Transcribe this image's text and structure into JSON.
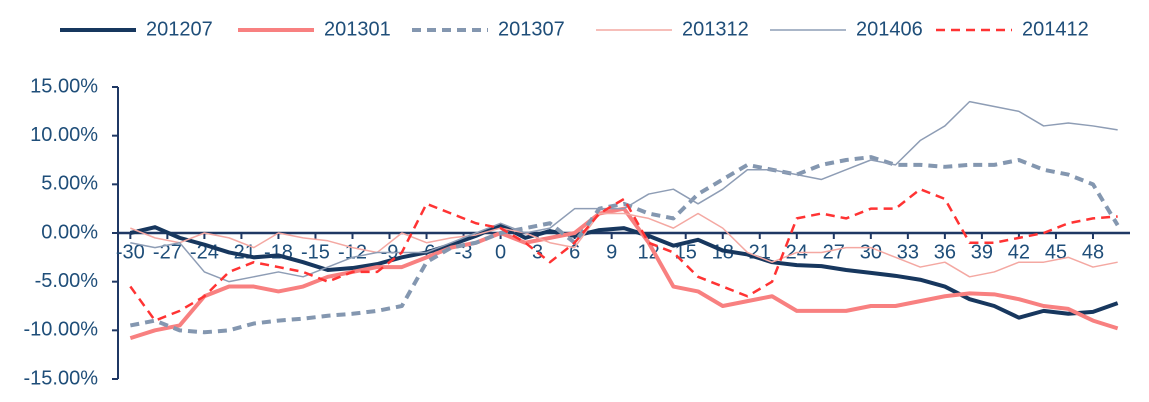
{
  "chart_data": {
    "type": "line",
    "x": [
      -30,
      -28,
      -26,
      -24,
      -22,
      -20,
      -18,
      -16,
      -14,
      -12,
      -10,
      -8,
      -6,
      -4,
      -2,
      0,
      2,
      4,
      6,
      8,
      10,
      12,
      14,
      16,
      18,
      20,
      22,
      24,
      26,
      28,
      30,
      32,
      34,
      36,
      38,
      40,
      42,
      44,
      46,
      48,
      50
    ],
    "series": [
      {
        "name": "201207",
        "color": "#17375e",
        "style": "solid",
        "weight": "thick",
        "values": [
          0,
          0.6,
          -0.5,
          -1.2,
          -2,
          -2.5,
          -2.3,
          -3,
          -3.8,
          -3.6,
          -3.2,
          -2.5,
          -2,
          -1.2,
          -0.3,
          0.8,
          -0.5,
          0.2,
          -0.3,
          0.3,
          0.5,
          -0.3,
          -1.3,
          -0.7,
          -1.8,
          -2.2,
          -3,
          -3.3,
          -3.4,
          -3.8,
          -4.1,
          -4.4,
          -4.8,
          -5.5,
          -6.8,
          -7.5,
          -8.7,
          -8,
          -8.3,
          -8.1,
          -7.2
        ]
      },
      {
        "name": "201301",
        "color": "#f88080",
        "style": "solid",
        "weight": "thick",
        "values": [
          -10.8,
          -10,
          -9.5,
          -6.5,
          -5.5,
          -5.5,
          -6,
          -5.5,
          -4.5,
          -4,
          -3.5,
          -3.5,
          -2.5,
          -1.5,
          -1,
          0,
          -1,
          -0.5,
          0,
          2,
          2.5,
          -1,
          -5.5,
          -6,
          -7.5,
          -7,
          -6.5,
          -8,
          -8,
          -8,
          -7.5,
          -7.5,
          -7,
          -6.5,
          -6.2,
          -6.3,
          -6.8,
          -7.5,
          -7.8,
          -9,
          -9.8
        ]
      },
      {
        "name": "201307",
        "color": "#8497b0",
        "style": "dashed",
        "weight": "thick",
        "values": [
          -9.5,
          -9,
          -10,
          -10.2,
          -10,
          -9.3,
          -9,
          -8.8,
          -8.5,
          -8.3,
          -8,
          -7.5,
          -3,
          -1.5,
          -1,
          0,
          0.5,
          1,
          -1,
          2.5,
          3,
          2,
          1.5,
          4,
          5.5,
          7,
          6.5,
          6,
          7,
          7.5,
          7.8,
          7,
          7,
          6.8,
          7,
          7,
          7.5,
          6.5,
          6,
          5,
          0.8
        ]
      },
      {
        "name": "201312",
        "color": "#f4a8a2",
        "style": "solid",
        "weight": "thin",
        "values": [
          0.5,
          -0.5,
          -1,
          0,
          -0.5,
          -1.5,
          0,
          -0.5,
          -0.8,
          -1.5,
          -2,
          0,
          -1,
          -0.5,
          -0.2,
          0.5,
          0,
          -1,
          -1.5,
          2,
          2,
          1.5,
          0.5,
          2,
          0.5,
          -2,
          -3,
          -2,
          -2,
          -1.5,
          -1.5,
          -2.5,
          -3.5,
          -3,
          -4.5,
          -4,
          -3,
          -3,
          -2.5,
          -3.5,
          -3
        ]
      },
      {
        "name": "201406",
        "color": "#8e9db5",
        "style": "solid",
        "weight": "thin",
        "values": [
          -1,
          -1.5,
          -1,
          -4,
          -5,
          -4.5,
          -4,
          -4.5,
          -3.5,
          -2.5,
          -2,
          -2,
          -2,
          -1,
          0,
          1,
          0,
          0.5,
          2.5,
          2.5,
          2.5,
          4,
          4.5,
          3,
          4.5,
          6.5,
          6.5,
          6,
          5.5,
          6.5,
          7.5,
          7,
          9.5,
          11,
          13.5,
          13,
          12.5,
          11,
          11.3,
          11,
          10.6
        ]
      },
      {
        "name": "201412",
        "color": "#ff3333",
        "style": "dashed",
        "weight": "medium",
        "values": [
          -5.5,
          -9,
          -8,
          -6.5,
          -4,
          -3,
          -3.5,
          -4,
          -5,
          -4,
          -4,
          -2,
          3,
          2,
          1,
          0.5,
          -1,
          -3,
          -1,
          2,
          3.5,
          -1,
          -2,
          -4.5,
          -5.5,
          -6.5,
          -5,
          1.5,
          2,
          1.5,
          2.5,
          2.5,
          4.5,
          3.5,
          -1,
          -1,
          -0.5,
          0,
          1,
          1.5,
          1.7
        ]
      }
    ],
    "xlim": [
      -31,
      51
    ],
    "xticks": [
      -30,
      -27,
      -24,
      -21,
      -18,
      -15,
      -12,
      -9,
      -6,
      -3,
      0,
      3,
      6,
      9,
      12,
      15,
      18,
      21,
      24,
      27,
      30,
      33,
      36,
      39,
      42,
      45,
      48
    ],
    "ylim": [
      -15,
      15
    ],
    "yticks": [
      {
        "value": -15,
        "label": "-15.00%"
      },
      {
        "value": -10,
        "label": "-10.00%"
      },
      {
        "value": -5,
        "label": "-5.00%"
      },
      {
        "value": 0,
        "label": "0.00%"
      },
      {
        "value": 5,
        "label": "5.00%"
      },
      {
        "value": 10,
        "label": "10.00%"
      },
      {
        "value": 15,
        "label": "15.00%"
      }
    ],
    "legend": "top"
  }
}
